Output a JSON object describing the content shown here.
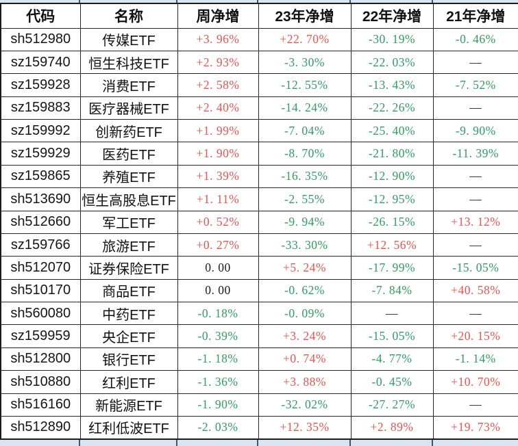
{
  "colors": {
    "up_red": "#f4514b",
    "down_green": "#2da05d",
    "neutral_black": "#1c1c1c",
    "grid_line": "#262626",
    "adjacent_row_fill": "#d9e5f2"
  },
  "chart_data": {
    "type": "table",
    "title": "",
    "columns": [
      "代码",
      "名称",
      "周净增",
      "23年净增",
      "22年净增",
      "21年净增"
    ],
    "rows": [
      [
        "sh512980",
        "传媒ETF",
        "+3. 96%",
        "+22. 70%",
        "-30. 19%",
        "-0. 46%"
      ],
      [
        "sz159740",
        "恒生科技ETF",
        "+2. 93%",
        "-3. 30%",
        "-22. 03%",
        "—"
      ],
      [
        "sz159928",
        "消费ETF",
        "+2. 58%",
        "-12. 55%",
        "-13. 43%",
        "-7. 52%"
      ],
      [
        "sz159883",
        "医疗器械ETF",
        "+2. 40%",
        "-14. 24%",
        "-22. 26%",
        "—"
      ],
      [
        "sz159992",
        "创新药ETF",
        "+1. 99%",
        "-7. 04%",
        "-25. 40%",
        "-9. 90%"
      ],
      [
        "sz159929",
        "医药ETF",
        "+1. 90%",
        "-8. 70%",
        "-21. 80%",
        "-11. 39%"
      ],
      [
        "sz159865",
        "养殖ETF",
        "+1. 39%",
        "-16. 35%",
        "-12. 90%",
        "—"
      ],
      [
        "sh513690",
        "恒生高股息ETF",
        "+1. 11%",
        "-2. 55%",
        "-12. 95%",
        "—"
      ],
      [
        "sh512660",
        "军工ETF",
        "+0. 52%",
        "-9. 94%",
        "-26. 15%",
        "+13. 12%"
      ],
      [
        "sz159766",
        "旅游ETF",
        "+0. 27%",
        "-33. 30%",
        "+12. 56%",
        "—"
      ],
      [
        "sh512070",
        "证券保险ETF",
        "0. 00",
        "+5. 24%",
        "-17. 99%",
        "-15. 05%"
      ],
      [
        "sh510170",
        "商品ETF",
        "0. 00",
        "-0. 62%",
        "-7. 84%",
        "+40. 58%"
      ],
      [
        "sh560080",
        "中药ETF",
        "-0. 18%",
        "-0. 09%",
        "—",
        "—"
      ],
      [
        "sz159959",
        "央企ETF",
        "-0. 39%",
        "+3. 24%",
        "-15. 05%",
        "+20. 15%"
      ],
      [
        "sh512800",
        "银行ETF",
        "-1. 18%",
        "+0. 74%",
        "-4. 77%",
        "-1. 14%"
      ],
      [
        "sh510880",
        "红利ETF",
        "-1. 36%",
        "+3. 88%",
        "-0. 45%",
        "+10. 70%"
      ],
      [
        "sh516160",
        "新能源ETF",
        "-1. 90%",
        "-32. 02%",
        "-27. 27%",
        "—"
      ],
      [
        "sh512890",
        "红利低波ETF",
        "-2. 03%",
        "+12. 35%",
        "+2. 89%",
        "+19. 73%"
      ]
    ]
  }
}
